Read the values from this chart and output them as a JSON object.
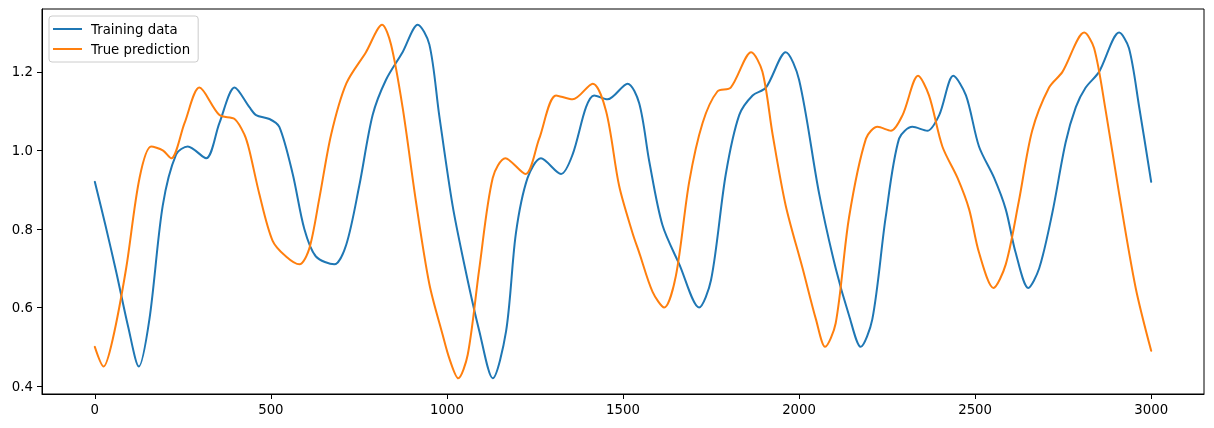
{
  "chart_data": {
    "type": "line",
    "xlim": [
      -150,
      3150
    ],
    "xticks": [
      0,
      500,
      1000,
      1500,
      2000,
      2500,
      3000
    ],
    "ylim": [
      0.38,
      1.36
    ],
    "yticks": [
      0.4,
      0.6,
      0.8,
      {
        "value": 1,
        "label": "1.0"
      },
      1.2
    ],
    "legend": "top left",
    "series": [
      {
        "name": "Training data",
        "color": "#1f77b4",
        "x": [
          0,
          30,
          61,
          95,
          125,
          155,
          193,
          231,
          264,
          316,
          354,
          397,
          439,
          458,
          496,
          524,
          562,
          595,
          628,
          680,
          714,
          751,
          789,
          827,
          874,
          917,
          950,
          978,
          1016,
          1054,
          1092,
          1130,
          1168,
          1196,
          1229,
          1267,
          1324,
          1357,
          1395,
          1418,
          1456,
          1513,
          1546,
          1575,
          1612,
          1660,
          1716,
          1750,
          1792,
          1830,
          1868,
          1906,
          1962,
          2000,
          2057,
          2104,
          2142,
          2175,
          2208,
          2246,
          2284,
          2322,
          2364,
          2398,
          2438,
          2474,
          2511,
          2554,
          2587,
          2615,
          2651,
          2682,
          2719,
          2757,
          2786,
          2814,
          2852,
          2909,
          2937,
          2966,
          3000
        ],
        "values": [
          0.92,
          0.81,
          0.69,
          0.55,
          0.45,
          0.57,
          0.86,
          0.99,
          1.01,
          0.98,
          1.07,
          1.16,
          1.11,
          1.09,
          1.08,
          1.06,
          0.94,
          0.8,
          0.73,
          0.71,
          0.76,
          0.91,
          1.09,
          1.18,
          1.25,
          1.32,
          1.27,
          1.09,
          0.86,
          0.69,
          0.54,
          0.42,
          0.54,
          0.79,
          0.93,
          0.98,
          0.94,
          0.99,
          1.11,
          1.14,
          1.13,
          1.17,
          1.12,
          0.97,
          0.81,
          0.71,
          0.6,
          0.67,
          0.94,
          1.09,
          1.14,
          1.16,
          1.25,
          1.18,
          0.89,
          0.7,
          0.58,
          0.5,
          0.57,
          0.83,
          1.03,
          1.06,
          1.05,
          1.09,
          1.19,
          1.14,
          1.01,
          0.93,
          0.85,
          0.74,
          0.65,
          0.7,
          0.84,
          1.02,
          1.11,
          1.16,
          1.2,
          1.3,
          1.26,
          1.11,
          0.92
        ]
      },
      {
        "name": "True prediction",
        "color": "#ff7f0e",
        "x": [
          0,
          25,
          51,
          89,
          127,
          160,
          193,
          217,
          255,
          297,
          354,
          397,
          425,
          439,
          467,
          505,
          543,
          581,
          609,
          638,
          671,
          714,
          770,
          816,
          841,
          874,
          912,
          950,
          988,
          1007,
          1032,
          1059,
          1092,
          1130,
          1166,
          1223,
          1262,
          1310,
          1357,
          1414,
          1452,
          1489,
          1527,
          1546,
          1584,
          1617,
          1650,
          1688,
          1726,
          1768,
          1806,
          1864,
          1896,
          1925,
          1962,
          2010,
          2048,
          2074,
          2104,
          2142,
          2190,
          2223,
          2261,
          2294,
          2338,
          2369,
          2407,
          2450,
          2483,
          2511,
          2552,
          2587,
          2624,
          2662,
          2710,
          2748,
          2810,
          2838,
          2871,
          2909,
          2956,
          3000
        ],
        "values": [
          0.5,
          0.45,
          0.52,
          0.7,
          0.93,
          1.01,
          1.0,
          0.98,
          1.07,
          1.16,
          1.09,
          1.08,
          1.04,
          1.0,
          0.89,
          0.77,
          0.73,
          0.71,
          0.75,
          0.88,
          1.04,
          1.17,
          1.25,
          1.32,
          1.27,
          1.11,
          0.87,
          0.66,
          0.53,
          0.47,
          0.42,
          0.48,
          0.7,
          0.93,
          0.98,
          0.94,
          1.03,
          1.14,
          1.13,
          1.17,
          1.1,
          0.91,
          0.79,
          0.74,
          0.64,
          0.6,
          0.68,
          0.92,
          1.07,
          1.15,
          1.16,
          1.25,
          1.2,
          1.04,
          0.86,
          0.7,
          0.57,
          0.5,
          0.56,
          0.83,
          1.03,
          1.06,
          1.05,
          1.09,
          1.19,
          1.14,
          1.01,
          0.93,
          0.85,
          0.74,
          0.65,
          0.71,
          0.87,
          1.05,
          1.16,
          1.2,
          1.3,
          1.26,
          1.1,
          0.89,
          0.65,
          0.49
        ]
      }
    ]
  }
}
